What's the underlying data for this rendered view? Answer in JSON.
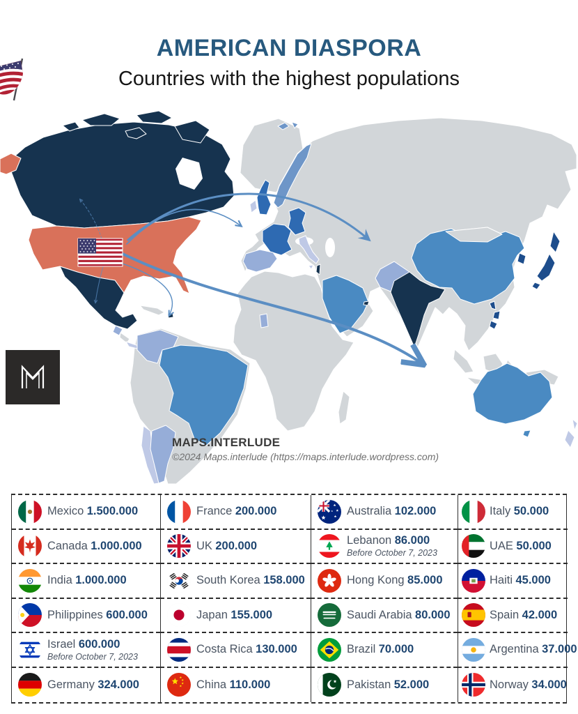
{
  "header": {
    "title": "AMERICAN DIASPORA",
    "subtitle": "Countries with the highest populations"
  },
  "map": {
    "credit_title": "MAPS.INTERLUDE",
    "credit_line": "©2024 Maps.interlude (https://maps.interlude.wordpress.com)",
    "logo_letter": "M",
    "colors": {
      "base": "#d2d6d9",
      "origin": "#d9715a",
      "dark": "#16334f",
      "strong": "#2e6ab2",
      "jp": "#1d4d8c",
      "medium": "#4a8ac2",
      "nor": "#6e96c8",
      "light": "#96add8",
      "lighter": "#bfc9e6",
      "arrow": "#5b8ec3"
    }
  },
  "table": {
    "rows": [
      [
        {
          "flag": "mx",
          "country": "Mexico",
          "value": "1.500.000"
        },
        {
          "flag": "fr",
          "country": "France",
          "value": "200.000"
        },
        {
          "flag": "au",
          "country": "Australia",
          "value": "102.000"
        },
        {
          "flag": "it",
          "country": "Italy",
          "value": "50.000"
        }
      ],
      [
        {
          "flag": "ca",
          "country": "Canada",
          "value": "1.000.000"
        },
        {
          "flag": "uk",
          "country": "UK",
          "value": "200.000"
        },
        {
          "flag": "lb",
          "country": "Lebanon",
          "value": "86.000",
          "note": "Before October 7, 2023"
        },
        {
          "flag": "ae",
          "country": "UAE",
          "value": "50.000"
        }
      ],
      [
        {
          "flag": "in",
          "country": "India",
          "value": "1.000.000"
        },
        {
          "flag": "kr",
          "country": "South Korea",
          "value": "158.000"
        },
        {
          "flag": "hk",
          "country": "Hong Kong",
          "value": "85.000"
        },
        {
          "flag": "ht",
          "country": "Haiti",
          "value": "45.000"
        }
      ],
      [
        {
          "flag": "ph",
          "country": "Philippines",
          "value": "600.000"
        },
        {
          "flag": "jp",
          "country": "Japan",
          "value": "155.000"
        },
        {
          "flag": "sa",
          "country": "Saudi Arabia",
          "value": "80.000"
        },
        {
          "flag": "es",
          "country": "Spain",
          "value": "42.000"
        }
      ],
      [
        {
          "flag": "il",
          "country": "Israel",
          "value": "600.000",
          "note": "Before October 7, 2023"
        },
        {
          "flag": "cr",
          "country": "Costa Rica",
          "value": "130.000"
        },
        {
          "flag": "br",
          "country": "Brazil",
          "value": "70.000"
        },
        {
          "flag": "ar",
          "country": "Argentina",
          "value": "37.000"
        }
      ],
      [
        {
          "flag": "de",
          "country": "Germany",
          "value": "324.000"
        },
        {
          "flag": "cn",
          "country": "China",
          "value": "110.000"
        },
        {
          "flag": "pk",
          "country": "Pakistan",
          "value": "52.000"
        },
        {
          "flag": "no",
          "country": "Norway",
          "value": "34.000"
        }
      ]
    ]
  },
  "chart_data": {
    "type": "table",
    "title": "American Diaspora — Countries with the highest populations",
    "unit": "people",
    "entries": [
      {
        "country": "Mexico",
        "value": 1500000
      },
      {
        "country": "Canada",
        "value": 1000000
      },
      {
        "country": "India",
        "value": 1000000
      },
      {
        "country": "Philippines",
        "value": 600000
      },
      {
        "country": "Israel",
        "value": 600000,
        "note": "Before October 7, 2023"
      },
      {
        "country": "Germany",
        "value": 324000
      },
      {
        "country": "France",
        "value": 200000
      },
      {
        "country": "UK",
        "value": 200000
      },
      {
        "country": "South Korea",
        "value": 158000
      },
      {
        "country": "Japan",
        "value": 155000
      },
      {
        "country": "Costa Rica",
        "value": 130000
      },
      {
        "country": "China",
        "value": 110000
      },
      {
        "country": "Australia",
        "value": 102000
      },
      {
        "country": "Lebanon",
        "value": 86000,
        "note": "Before October 7, 2023"
      },
      {
        "country": "Hong Kong",
        "value": 85000
      },
      {
        "country": "Saudi Arabia",
        "value": 80000
      },
      {
        "country": "Brazil",
        "value": 70000
      },
      {
        "country": "Pakistan",
        "value": 52000
      },
      {
        "country": "Italy",
        "value": 50000
      },
      {
        "country": "UAE",
        "value": 50000
      },
      {
        "country": "Haiti",
        "value": 45000
      },
      {
        "country": "Spain",
        "value": 42000
      },
      {
        "country": "Argentina",
        "value": 37000
      },
      {
        "country": "Norway",
        "value": 34000
      }
    ]
  }
}
